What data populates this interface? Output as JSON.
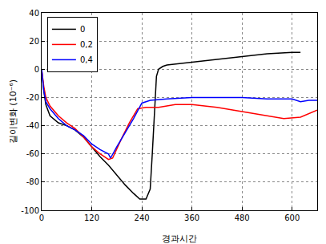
{
  "chart_data": {
    "type": "line",
    "x_label": "경과시간",
    "y_label": "길이변화 (10⁻⁶)",
    "xlim": [
      0,
      660
    ],
    "xticks": [
      0,
      120,
      240,
      360,
      480,
      600
    ],
    "ylim": [
      -100,
      40
    ],
    "yticks": [
      -100,
      -80,
      -60,
      -40,
      -20,
      0,
      20,
      40
    ],
    "grid": true,
    "legend": "upper left",
    "series": [
      {
        "name": "0",
        "color": "#000000",
        "x": [
          0,
          5,
          10,
          20,
          40,
          60,
          80,
          100,
          120,
          140,
          160,
          180,
          200,
          220,
          235,
          250,
          260,
          265,
          270,
          275,
          280,
          290,
          300,
          360,
          420,
          480,
          540,
          600,
          620
        ],
        "values": [
          0,
          -15,
          -25,
          -33,
          -38,
          -40,
          -43,
          -48,
          -55,
          -62,
          -68,
          -75,
          -82,
          -88,
          -92,
          -92,
          -85,
          -60,
          -30,
          -5,
          0,
          2,
          3,
          5,
          7,
          9,
          11,
          12,
          12
        ]
      },
      {
        "name": "0,2",
        "color": "#ff0000",
        "x": [
          0,
          5,
          10,
          20,
          40,
          60,
          80,
          100,
          120,
          140,
          160,
          170,
          190,
          210,
          230,
          250,
          280,
          320,
          360,
          420,
          480,
          540,
          580,
          620,
          660
        ],
        "values": [
          0,
          -12,
          -20,
          -26,
          -33,
          -38,
          -42,
          -48,
          -55,
          -60,
          -64,
          -63,
          -50,
          -38,
          -28,
          -27,
          -27,
          -25,
          -25,
          -27,
          -30,
          -33,
          -35,
          -34,
          -29
        ]
      },
      {
        "name": "0,4",
        "color": "#0000ff",
        "x": [
          0,
          5,
          10,
          20,
          40,
          60,
          80,
          100,
          120,
          140,
          160,
          165,
          180,
          200,
          220,
          240,
          260,
          300,
          360,
          420,
          480,
          540,
          600,
          620,
          640,
          660
        ],
        "values": [
          0,
          -15,
          -23,
          -28,
          -35,
          -40,
          -43,
          -47,
          -53,
          -57,
          -60,
          -63,
          -55,
          -45,
          -35,
          -24,
          -22,
          -21,
          -20,
          -20,
          -20,
          -21,
          -21,
          -23,
          -22,
          -22
        ]
      }
    ]
  }
}
